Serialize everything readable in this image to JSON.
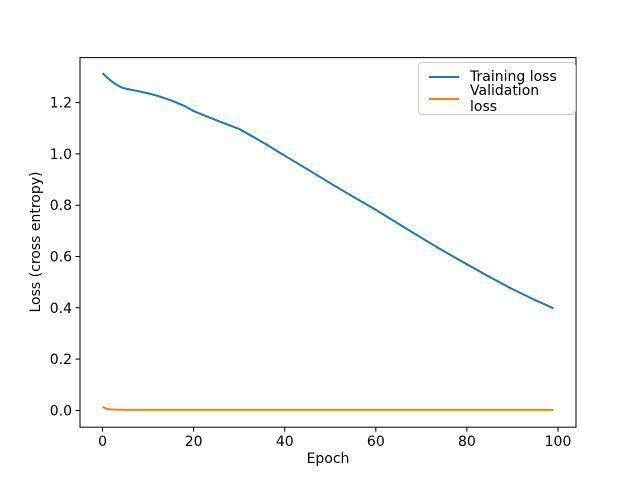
{
  "figure": {
    "background": "#ffffff",
    "axis_color": "#000000",
    "text_color": "#000000",
    "legend_border_color": "#d0d0d0"
  },
  "chart_data": {
    "type": "line",
    "title": "",
    "xlabel": "Epoch",
    "ylabel": "Loss (cross entropy)",
    "xlim": [
      -4.95,
      103.95
    ],
    "ylim": [
      -0.0655,
      1.3755
    ],
    "xticks": [
      0,
      20,
      40,
      60,
      80,
      100
    ],
    "xtick_labels": [
      "0",
      "20",
      "40",
      "60",
      "80",
      "100"
    ],
    "yticks": [
      0.0,
      0.2,
      0.4,
      0.6,
      0.8,
      1.0,
      1.2
    ],
    "ytick_labels": [
      "0.0",
      "0.2",
      "0.4",
      "0.6",
      "0.8",
      "1.0",
      "1.2"
    ],
    "grid": false,
    "legend": {
      "position": "upper right",
      "entries": [
        "Training loss",
        "Validation loss"
      ]
    },
    "series": [
      {
        "name": "Training loss",
        "color": "#1f77b4",
        "x": [
          0,
          1,
          2,
          3,
          4,
          5,
          6,
          8,
          10,
          12,
          15,
          18,
          20,
          25,
          30,
          35,
          40,
          45,
          50,
          55,
          60,
          65,
          70,
          75,
          80,
          85,
          90,
          95,
          99
        ],
        "y": [
          1.315,
          1.298,
          1.283,
          1.271,
          1.26,
          1.255,
          1.251,
          1.244,
          1.236,
          1.227,
          1.209,
          1.187,
          1.167,
          1.131,
          1.097,
          1.047,
          0.993,
          0.94,
          0.886,
          0.833,
          0.782,
          0.727,
          0.673,
          0.62,
          0.57,
          0.52,
          0.473,
          0.43,
          0.398
        ]
      },
      {
        "name": "Validation loss",
        "color": "#ff7f0e",
        "x": [
          0,
          1,
          2,
          3,
          5,
          10,
          20,
          30,
          40,
          50,
          60,
          70,
          80,
          90,
          99
        ],
        "y": [
          0.014,
          0.006,
          0.004,
          0.003,
          0.002,
          0.002,
          0.002,
          0.002,
          0.002,
          0.002,
          0.002,
          0.002,
          0.002,
          0.002,
          0.002
        ]
      }
    ]
  }
}
